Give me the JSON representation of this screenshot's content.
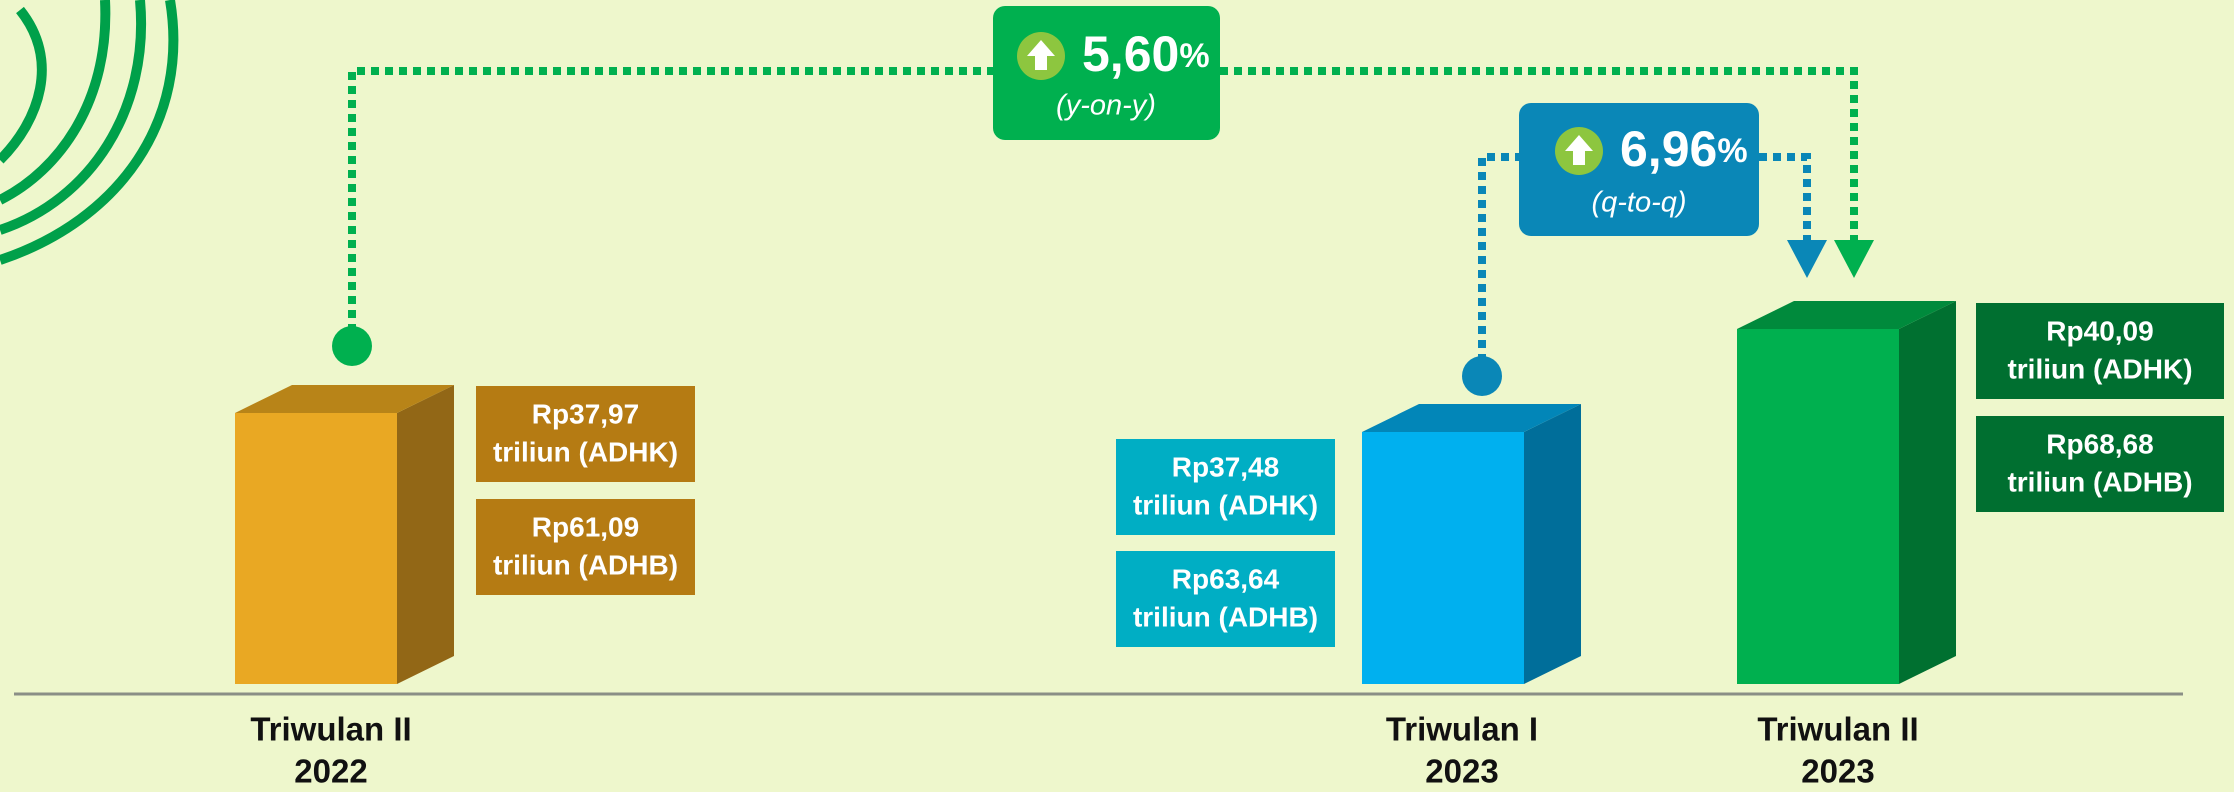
{
  "growth_yoy": {
    "value": "5,60",
    "unit": "%",
    "period": "(y-on-y)"
  },
  "growth_qtoq": {
    "value": "6,96",
    "unit": "%",
    "period": "(q-to-q)"
  },
  "periods": [
    {
      "label": "Triwulan II",
      "year": "2022",
      "adhk_amount": "Rp37,97",
      "adhk_unit": "triliun (ADHK)",
      "adhb_amount": "Rp61,09",
      "adhb_unit": "triliun (ADHB)"
    },
    {
      "label": "Triwulan I",
      "year": "2023",
      "adhk_amount": "Rp37,48",
      "adhk_unit": "triliun (ADHK)",
      "adhb_amount": "Rp63,64",
      "adhb_unit": "triliun (ADHB)"
    },
    {
      "label": "Triwulan II",
      "year": "2023",
      "adhk_amount": "Rp40,09",
      "adhk_unit": "triliun (ADHK)",
      "adhb_amount": "Rp68,68",
      "adhb_unit": "triliun (ADHB)"
    }
  ]
}
